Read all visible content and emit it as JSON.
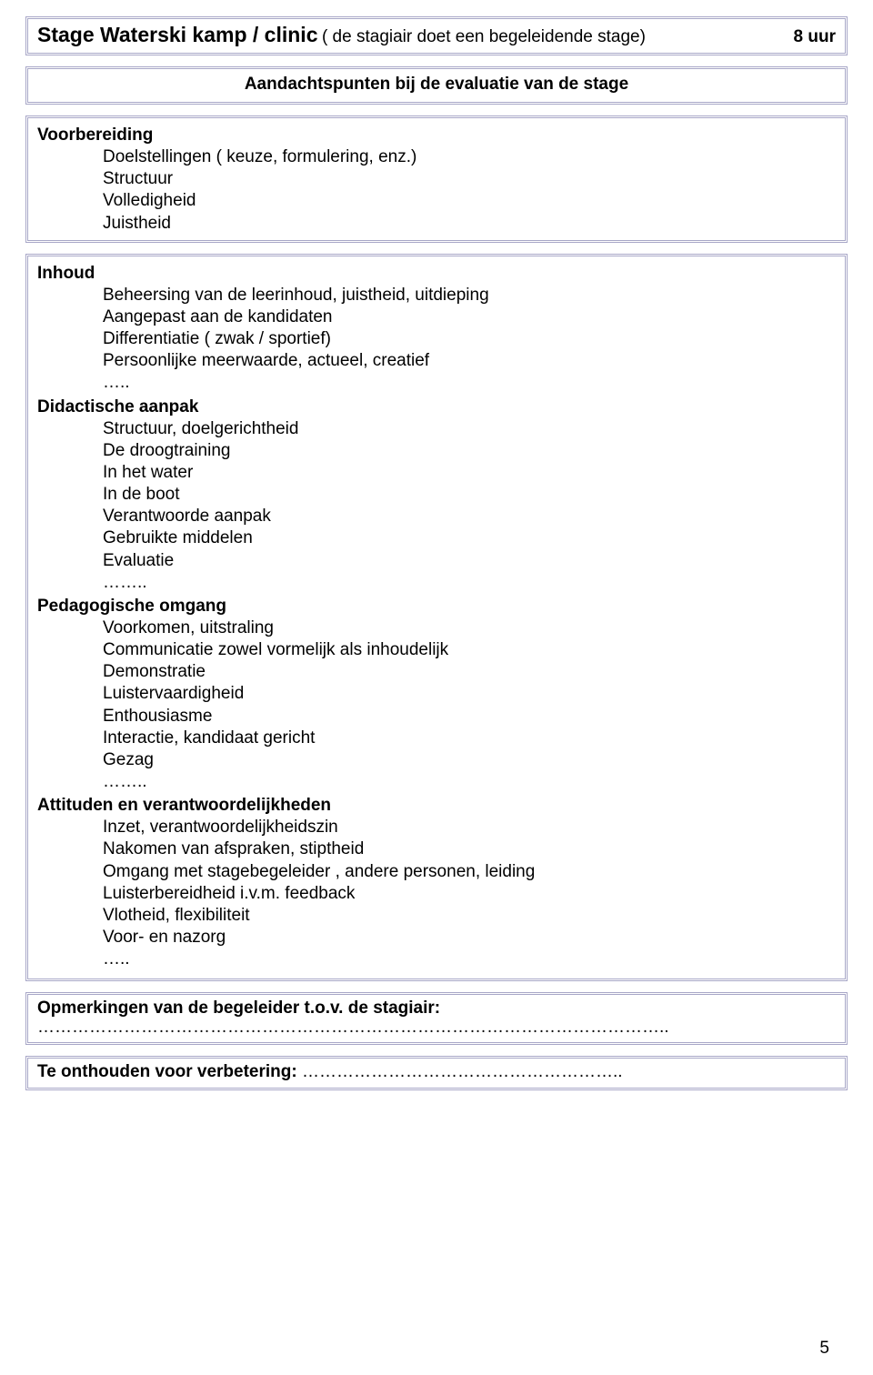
{
  "header": {
    "title_main": "Stage Waterski kamp / clinic",
    "title_sub": "( de stagiair doet een begeleidende stage)",
    "title_right": "8 uur"
  },
  "eval_header": "Aandachtspunten bij de evaluatie van de stage",
  "voorbereiding": {
    "title": "Voorbereiding",
    "items": [
      "Doelstellingen ( keuze, formulering, enz.)",
      "Structuur",
      "Volledigheid",
      "Juistheid"
    ]
  },
  "inhoud": {
    "title": "Inhoud",
    "items": [
      "Beheersing van de leerinhoud, juistheid, uitdieping",
      "Aangepast aan de kandidaten",
      "Differentiatie ( zwak / sportief)",
      "Persoonlijke meerwaarde, actueel, creatief"
    ],
    "trail": "….."
  },
  "didactisch": {
    "title": "Didactische aanpak",
    "items": [
      "Structuur, doelgerichtheid",
      "De droogtraining",
      "In het water",
      "In de boot",
      "Verantwoorde aanpak",
      "Gebruikte middelen",
      "Evaluatie"
    ],
    "trail": "…….."
  },
  "pedagogisch": {
    "title": "Pedagogische omgang",
    "items": [
      "Voorkomen, uitstraling",
      "Communicatie zowel vormelijk als inhoudelijk",
      "Demonstratie",
      "Luistervaardigheid",
      "Enthousiasme",
      "Interactie, kandidaat gericht",
      "Gezag"
    ],
    "trail": "…….."
  },
  "attituden": {
    "title": "Attituden en verantwoordelijkheden",
    "items": [
      "Inzet, verantwoordelijkheidszin",
      "Nakomen van afspraken, stiptheid",
      "Omgang met stagebegeleider , andere personen, leiding",
      "Luisterbereidheid i.v.m. feedback",
      "Vlotheid, flexibiliteit",
      "Voor- en nazorg"
    ],
    "trail": "….."
  },
  "remarks": {
    "label": "Opmerkingen van de begeleider t.o.v. de stagiair:",
    "dots": "……………………………………………………………………………………………….."
  },
  "improve": {
    "label": "Te onthouden voor verbetering: ",
    "dots": "……………………………………………….."
  },
  "page_number": "5"
}
